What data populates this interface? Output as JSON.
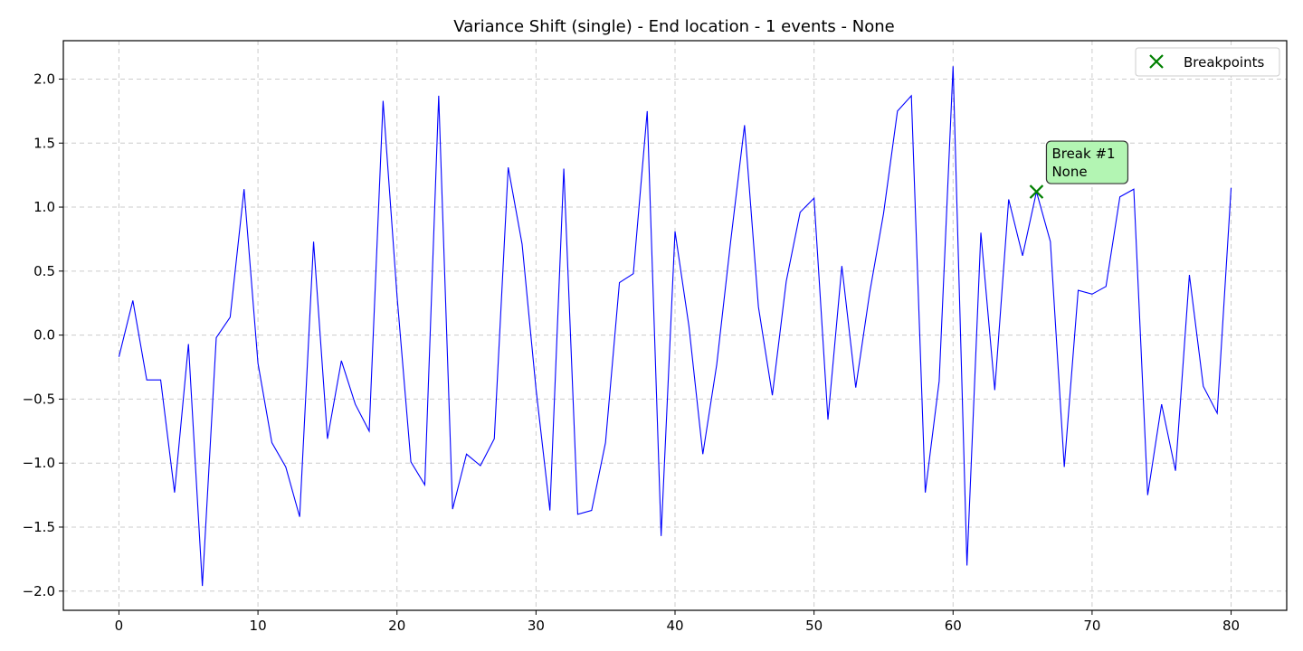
{
  "chart_data": {
    "type": "line",
    "title": "Variance Shift (single) - End location - 1 events - None",
    "xlabel": "",
    "ylabel": "",
    "xlim": [
      -4,
      84
    ],
    "ylim": [
      -2.15,
      2.3
    ],
    "xticks": [
      0,
      10,
      20,
      30,
      40,
      50,
      60,
      70,
      80
    ],
    "yticks": [
      -2.0,
      -1.5,
      -1.0,
      -0.5,
      0.0,
      0.5,
      1.0,
      1.5,
      2.0
    ],
    "grid": true,
    "legend_position": "top-right",
    "series": [
      {
        "name": "",
        "color": "#0000ff",
        "x": [
          0,
          1,
          2,
          3,
          4,
          5,
          6,
          7,
          8,
          9,
          10,
          11,
          12,
          13,
          14,
          15,
          16,
          17,
          18,
          19,
          20,
          21,
          22,
          23,
          24,
          25,
          26,
          27,
          28,
          29,
          30,
          31,
          32,
          33,
          34,
          35,
          36,
          37,
          38,
          39,
          40,
          41,
          42,
          43,
          44,
          45,
          46,
          47,
          48,
          49,
          50,
          51,
          52,
          53,
          54,
          55,
          56,
          57,
          58,
          59,
          60,
          61,
          62,
          63,
          64,
          65,
          66,
          67,
          68,
          69,
          70,
          71,
          72,
          73,
          74,
          75,
          76,
          77,
          78,
          79,
          80
        ],
        "y": [
          -0.17,
          0.27,
          -0.35,
          -0.35,
          -1.23,
          -0.07,
          -1.96,
          -0.02,
          0.14,
          1.14,
          -0.22,
          -0.84,
          -1.03,
          -1.42,
          0.73,
          -0.81,
          -0.2,
          -0.54,
          -0.75,
          1.83,
          0.31,
          -0.99,
          -1.17,
          1.87,
          -1.36,
          -0.93,
          -1.02,
          -0.81,
          1.31,
          0.71,
          -0.42,
          -1.37,
          1.3,
          -1.4,
          -1.37,
          -0.84,
          0.41,
          0.48,
          1.75,
          -1.57,
          0.81,
          0.07,
          -0.93,
          -0.23,
          0.73,
          1.64,
          0.22,
          -0.47,
          0.42,
          0.96,
          1.07,
          -0.66,
          0.54,
          -0.41,
          0.33,
          0.95,
          1.75,
          1.87,
          -1.23,
          -0.36,
          2.1,
          -1.8,
          0.8,
          -0.43,
          1.06,
          0.62,
          1.12,
          0.73,
          -1.03,
          0.35,
          0.32,
          0.38,
          1.08,
          1.14,
          -1.25,
          -0.54,
          -1.06,
          0.47,
          -0.4,
          -0.61,
          1.15
        ]
      }
    ],
    "breakpoints": {
      "name": "Breakpoints",
      "color": "#008000",
      "points": [
        {
          "x": 66,
          "y": 1.12
        }
      ]
    },
    "annotations": [
      {
        "x": 66,
        "y": 1.12,
        "lines": [
          "Break #1",
          "None"
        ],
        "color": "#b3f5b3"
      }
    ]
  }
}
